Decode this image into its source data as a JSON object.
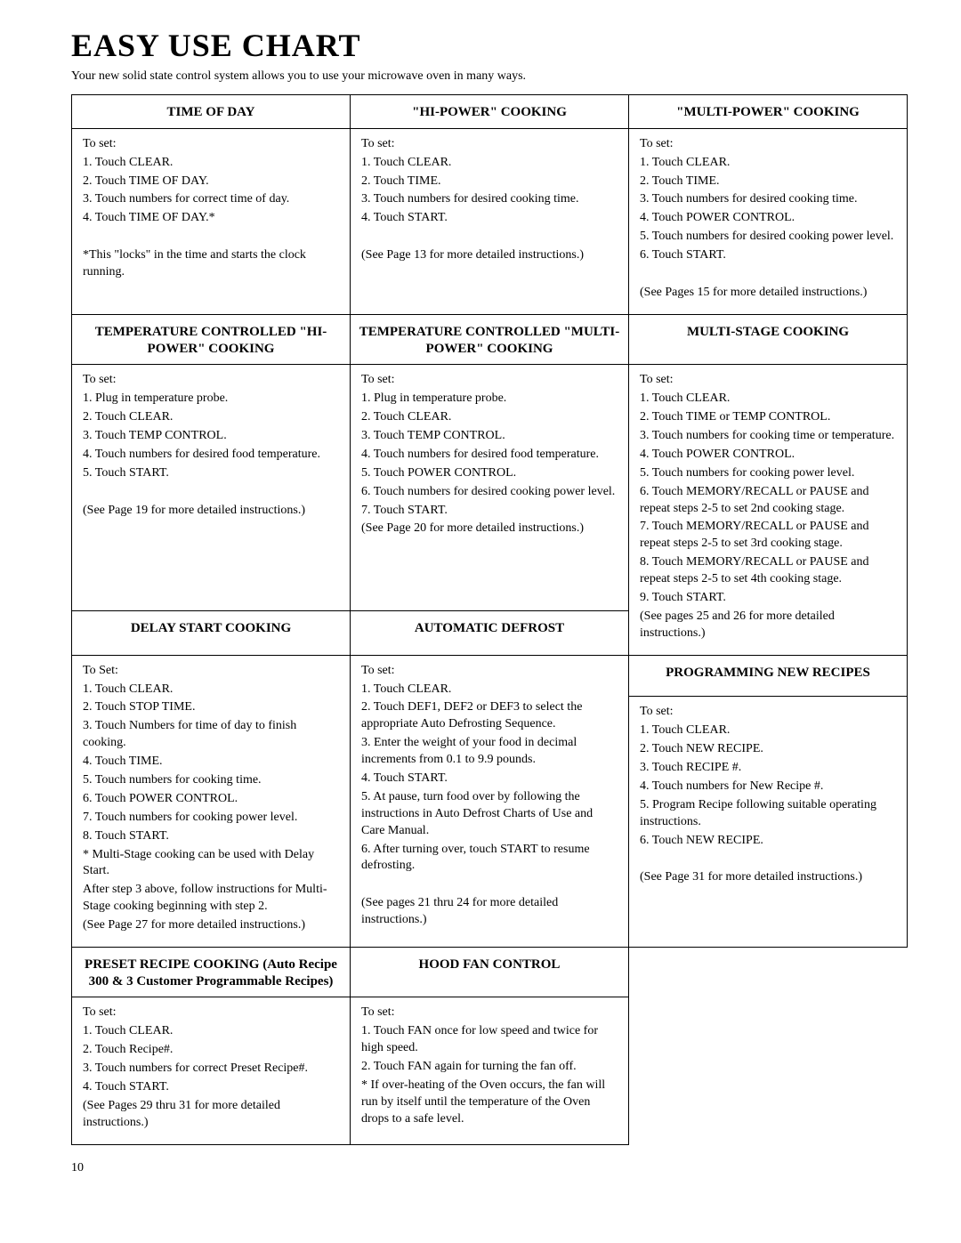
{
  "title": "EASY USE CHART",
  "subtitle": "Your new solid state control system allows you to use your microwave oven in many ways.",
  "page_number": "10",
  "cells": {
    "time_of_day": {
      "header": "TIME OF DAY",
      "body": "To set:\n1. Touch CLEAR.\n2. Touch TIME OF DAY.\n3. Touch numbers for correct time of day.\n4. Touch TIME OF DAY.*\n\n*This \"locks\" in the time and starts the clock running."
    },
    "hi_power": {
      "header": "\"HI-POWER\" COOKING",
      "body": "To set:\n1. Touch CLEAR.\n2. Touch TIME.\n3. Touch numbers for desired cooking time.\n4. Touch START.\n\n(See Page 13 for more detailed instructions.)"
    },
    "multi_power": {
      "header": "\"MULTI-POWER\" COOKING",
      "body": "To set:\n1. Touch CLEAR.\n2. Touch TIME.\n3. Touch numbers for desired cooking time.\n4. Touch POWER CONTROL.\n5. Touch numbers for desired cooking power level.\n6. Touch START.\n\n(See Pages 15 for more detailed instructions.)"
    },
    "temp_hi": {
      "header": "TEMPERATURE CONTROLLED \"HI-POWER\" COOKING",
      "body": "To set:\n1. Plug in temperature probe.\n2. Touch CLEAR.\n3. Touch TEMP CONTROL.\n4. Touch numbers for desired food temperature.\n5. Touch START.\n\n(See Page 19 for more detailed instructions.)"
    },
    "temp_multi": {
      "header": "TEMPERATURE CONTROLLED \"MULTI-POWER\" COOKING",
      "body": "To set:\n1. Plug in temperature probe.\n2. Touch CLEAR.\n3. Touch TEMP CONTROL.\n4. Touch numbers for desired food temperature.\n5. Touch POWER CONTROL.\n6. Touch numbers for desired cooking power level.\n7. Touch START.\n(See Page 20 for more detailed instructions.)"
    },
    "multi_stage": {
      "header": "MULTI-STAGE COOKING",
      "body": "To set:\n1. Touch CLEAR.\n2. Touch TIME or TEMP CONTROL.\n3. Touch numbers for cooking time or temperature.\n4. Touch POWER CONTROL.\n5. Touch numbers for cooking power level.\n6. Touch MEMORY/RECALL or PAUSE and repeat steps 2-5 to set 2nd cooking stage.\n7. Touch MEMORY/RECALL or PAUSE and repeat steps 2-5 to set 3rd cooking stage.\n8. Touch MEMORY/RECALL or PAUSE and repeat steps 2-5 to set 4th cooking stage.\n9. Touch START.\n(See pages 25 and 26 for more detailed instructions.)"
    },
    "delay": {
      "header": "DELAY START COOKING",
      "body": "To Set:\n1. Touch CLEAR.\n2. Touch STOP TIME.\n3. Touch Numbers for time of day to finish cooking.\n4. Touch TIME.\n5. Touch numbers for cooking time.\n6. Touch POWER CONTROL.\n7. Touch numbers for cooking power level.\n8. Touch START.\n* Multi-Stage cooking can be used with Delay Start.\nAfter step 3 above, follow instructions for Multi-Stage cooking beginning with step 2.\n(See Page 27 for more detailed instructions.)"
    },
    "auto_defrost": {
      "header": "AUTOMATIC DEFROST",
      "body": "To set:\n1. Touch CLEAR.\n2. Touch DEF1, DEF2 or DEF3 to select the appropriate Auto Defrosting Sequence.\n3. Enter the weight of your food in decimal increments from 0.1 to 9.9 pounds.\n4. Touch START.\n5. At pause, turn food over by following the instructions in Auto Defrost Charts of Use and Care Manual.\n6. After turning over, touch START to resume defrosting.\n\n(See pages 21 thru 24 for more detailed instructions.)"
    },
    "prog_recipes": {
      "header": "PROGRAMMING NEW RECIPES",
      "body": "To set:\n1. Touch CLEAR.\n2. Touch NEW RECIPE.\n3. Touch RECIPE #.\n4. Touch numbers for New Recipe #.\n5. Program Recipe following suitable operating instructions.\n6. Touch NEW RECIPE.\n\n(See Page 31 for more detailed instructions.)"
    },
    "preset": {
      "header": "PRESET RECIPE COOKING (Auto Recipe 300 & 3 Customer Programmable Recipes)",
      "body": "To set:\n1. Touch CLEAR.\n2. Touch Recipe#.\n3. Touch numbers for correct Preset Recipe#.\n4. Touch START.\n(See Pages 29 thru 31 for more detailed instructions.)"
    },
    "hood_fan": {
      "header": "HOOD FAN CONTROL",
      "body": "To set:\n1. Touch FAN once for low speed and twice for high speed.\n2. Touch FAN again for turning the fan off.\n* If over-heating of the Oven occurs, the fan will run by itself until the temperature of the Oven drops to a safe level."
    }
  }
}
